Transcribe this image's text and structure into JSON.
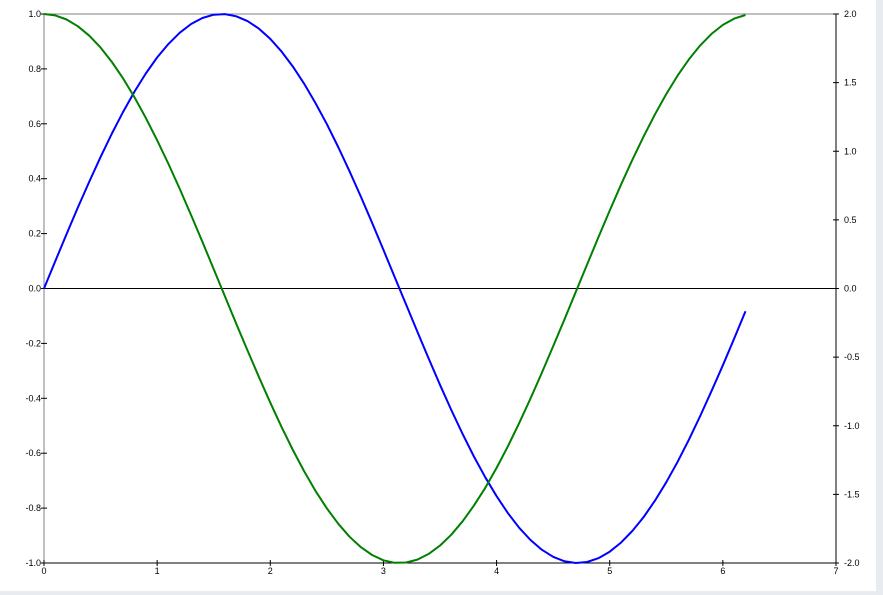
{
  "chart_data": {
    "type": "line",
    "title": "",
    "xlabel": "",
    "ylabel": "",
    "y2label": "",
    "xlim": [
      0,
      7
    ],
    "ylim": [
      -1.0,
      1.0
    ],
    "y2lim": [
      -2.0,
      2.0
    ],
    "grid": false,
    "x_ticks": [
      "0",
      "1",
      "2",
      "3",
      "4",
      "5",
      "6",
      "7"
    ],
    "y_ticks": [
      "-1.0",
      "-0.8",
      "-0.6",
      "-0.4",
      "-0.2",
      "0.0",
      "0.2",
      "0.4",
      "0.6",
      "0.8",
      "1.0"
    ],
    "y2_ticks": [
      "-2.0",
      "-1.5",
      "-1.0",
      "-0.5",
      "0.0",
      "0.5",
      "1.0",
      "1.5",
      "2.0"
    ],
    "x": [
      0,
      0.1,
      0.2,
      0.3,
      0.4,
      0.5,
      0.6,
      0.7,
      0.8,
      0.9,
      1.0,
      1.1,
      1.2,
      1.3,
      1.4,
      1.5,
      1.6,
      1.7,
      1.8,
      1.9,
      2.0,
      2.1,
      2.2,
      2.3,
      2.4,
      2.5,
      2.6,
      2.7,
      2.8,
      2.9,
      3.0,
      3.1,
      3.2,
      3.3,
      3.4,
      3.5,
      3.6,
      3.7,
      3.8,
      3.9,
      4.0,
      4.1,
      4.2,
      4.3,
      4.4,
      4.5,
      4.6,
      4.7,
      4.8,
      4.9,
      5.0,
      5.1,
      5.2,
      5.3,
      5.4,
      5.5,
      5.6,
      5.7,
      5.8,
      5.9,
      6.0,
      6.1,
      6.2
    ],
    "series": [
      {
        "color": "#0000ff",
        "values": [
          0,
          0.0998,
          0.1987,
          0.2955,
          0.3894,
          0.4794,
          0.5646,
          0.6442,
          0.7174,
          0.7833,
          0.8415,
          0.8912,
          0.932,
          0.9636,
          0.9854,
          0.9975,
          0.9996,
          0.9917,
          0.9738,
          0.9463,
          0.9093,
          0.8632,
          0.8085,
          0.7457,
          0.6755,
          0.5985,
          0.5155,
          0.4274,
          0.335,
          0.2392,
          0.1411,
          0.0416,
          -0.0584,
          -0.1577,
          -0.2555,
          -0.3508,
          -0.4425,
          -0.5298,
          -0.6119,
          -0.6878,
          -0.7568,
          -0.8183,
          -0.8716,
          -0.9162,
          -0.9516,
          -0.9775,
          -0.9937,
          -0.9999,
          -0.9962,
          -0.9825,
          -0.9589,
          -0.9258,
          -0.8835,
          -0.8323,
          -0.7728,
          -0.7055,
          -0.6313,
          -0.5507,
          -0.4646,
          -0.3739,
          -0.2794,
          -0.1822,
          -0.0831
        ]
      },
      {
        "color": "#008000",
        "values": [
          1,
          0.995,
          0.9801,
          0.9553,
          0.9211,
          0.8776,
          0.8253,
          0.7648,
          0.6967,
          0.6216,
          0.5403,
          0.4536,
          0.3624,
          0.2675,
          0.17,
          0.0707,
          -0.0292,
          -0.1288,
          -0.2272,
          -0.3233,
          -0.4161,
          -0.5048,
          -0.5885,
          -0.6663,
          -0.7374,
          -0.8011,
          -0.8569,
          -0.9041,
          -0.9422,
          -0.971,
          -0.99,
          -0.9991,
          -0.9983,
          -0.9875,
          -0.9668,
          -0.9365,
          -0.8968,
          -0.8481,
          -0.791,
          -0.7259,
          -0.6536,
          -0.5748,
          -0.4903,
          -0.4008,
          -0.3073,
          -0.2108,
          -0.1122,
          -0.0124,
          0.0875,
          0.1865,
          0.2837,
          0.378,
          0.4685,
          0.5544,
          0.6347,
          0.7087,
          0.7756,
          0.8347,
          0.8855,
          0.9275,
          0.9602,
          0.9833,
          0.9965
        ]
      }
    ]
  }
}
